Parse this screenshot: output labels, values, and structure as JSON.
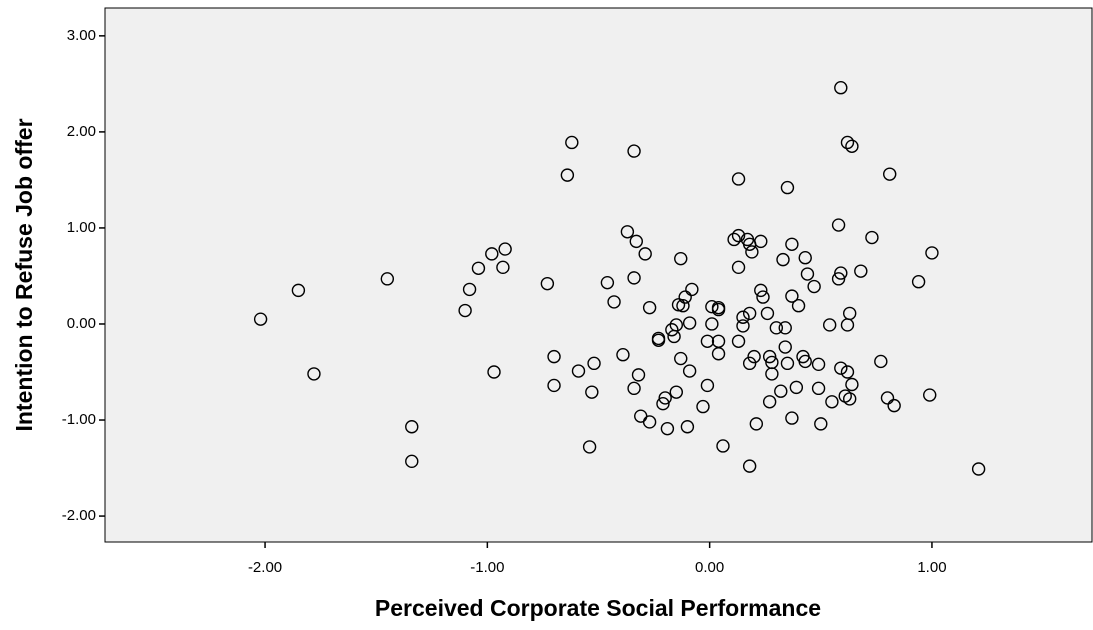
{
  "chart_data": {
    "type": "scatter",
    "xlabel": "Perceived Corporate Social Performance",
    "ylabel": "Intention to Refuse Job offer",
    "color": "#000000",
    "xlim": [
      -2.72,
      1.72
    ],
    "ylim": [
      -2.27,
      3.29
    ],
    "xticks": [
      {
        "value": -2,
        "label": "-2.00"
      },
      {
        "value": -1,
        "label": "-1.00"
      },
      {
        "value": 0,
        "label": "0.00"
      },
      {
        "value": 1,
        "label": "1.00"
      }
    ],
    "yticks": [
      {
        "value": -2,
        "label": "-2.00"
      },
      {
        "value": -1,
        "label": "-1.00"
      },
      {
        "value": 0,
        "label": "0.00"
      },
      {
        "value": 1,
        "label": "1.00"
      },
      {
        "value": 2,
        "label": "2.00"
      },
      {
        "value": 3,
        "label": "3.00"
      }
    ],
    "x": [
      -2.02,
      -1.85,
      -1.78,
      -1.45,
      -1.34,
      -1.34,
      -1.1,
      -1.08,
      -1.04,
      -0.98,
      -0.97,
      -0.93,
      -0.92,
      -0.73,
      -0.7,
      -0.7,
      -0.64,
      -0.62,
      -0.59,
      -0.54,
      -0.53,
      -0.52,
      -0.46,
      -0.43,
      -0.39,
      -0.37,
      -0.34,
      -0.34,
      -0.33,
      -0.34,
      -0.32,
      -0.31,
      -0.29,
      -0.27,
      -0.27,
      -0.23,
      -0.23,
      -0.21,
      -0.2,
      -0.19,
      -0.17,
      -0.16,
      -0.15,
      -0.15,
      -0.14,
      -0.13,
      -0.13,
      -0.12,
      -0.11,
      -0.1,
      -0.09,
      -0.09,
      -0.08,
      -0.03,
      -0.01,
      -0.01,
      0.01,
      0.01,
      0.04,
      0.04,
      0.04,
      0.04,
      0.06,
      0.11,
      0.13,
      0.13,
      0.13,
      0.13,
      0.15,
      0.15,
      0.17,
      0.18,
      0.18,
      0.18,
      0.18,
      0.19,
      0.2,
      0.21,
      0.23,
      0.23,
      0.24,
      0.26,
      0.27,
      0.27,
      0.28,
      0.28,
      0.3,
      0.32,
      0.33,
      0.34,
      0.34,
      0.35,
      0.35,
      0.37,
      0.37,
      0.37,
      0.39,
      0.4,
      0.42,
      0.43,
      0.43,
      0.44,
      0.47,
      0.49,
      0.49,
      0.5,
      0.54,
      0.55,
      0.58,
      0.58,
      0.59,
      0.59,
      0.61,
      0.62,
      0.62,
      0.62,
      0.63,
      0.63,
      0.64,
      0.64,
      0.68,
      0.59,
      0.73,
      0.77,
      0.8,
      0.81,
      0.83,
      0.94,
      0.99,
      1.0,
      1.21
    ],
    "values": [
      0.05,
      0.35,
      -0.52,
      0.47,
      -1.07,
      -1.43,
      0.14,
      0.36,
      0.58,
      0.73,
      -0.5,
      0.59,
      0.78,
      0.42,
      -0.34,
      -0.64,
      1.55,
      1.89,
      -0.49,
      -1.28,
      -0.71,
      -0.41,
      0.43,
      0.23,
      -0.32,
      0.96,
      1.8,
      0.48,
      0.86,
      -0.67,
      -0.53,
      -0.96,
      0.73,
      -1.02,
      0.17,
      -0.17,
      -0.15,
      -0.83,
      -0.77,
      -1.09,
      -0.06,
      -0.13,
      -0.71,
      -0.01,
      0.2,
      0.68,
      -0.36,
      0.19,
      0.28,
      -1.07,
      -0.49,
      0.01,
      0.36,
      -0.86,
      -0.64,
      -0.18,
      0.18,
      0.0,
      0.17,
      0.15,
      -0.18,
      -0.31,
      -1.27,
      0.88,
      -0.18,
      0.59,
      0.92,
      1.51,
      -0.02,
      0.07,
      0.88,
      0.83,
      -0.41,
      0.11,
      -1.48,
      0.75,
      -0.34,
      -1.04,
      0.86,
      0.35,
      0.28,
      0.11,
      -0.81,
      -0.34,
      -0.52,
      -0.4,
      -0.04,
      -0.7,
      0.67,
      -0.04,
      -0.24,
      1.42,
      -0.41,
      0.83,
      0.29,
      -0.98,
      -0.66,
      0.19,
      -0.34,
      0.69,
      -0.39,
      0.52,
      0.39,
      -0.42,
      -0.67,
      -1.04,
      -0.01,
      -0.81,
      1.03,
      0.47,
      0.53,
      -0.46,
      -0.75,
      -0.5,
      -0.01,
      1.89,
      -0.78,
      0.11,
      1.85,
      -0.63,
      0.55,
      2.46,
      0.9,
      -0.39,
      -0.77,
      1.56,
      -0.85,
      0.44,
      -0.74,
      0.74,
      -1.51
    ]
  }
}
